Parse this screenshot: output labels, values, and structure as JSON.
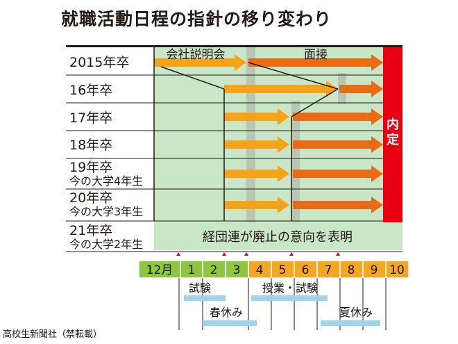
{
  "title": "就職活動日程の指針の移り変わり",
  "rows": [
    {
      "label": "2015年卒",
      "sub": ""
    },
    {
      "label": "16年卒",
      "sub": ""
    },
    {
      "label": "17年卒",
      "sub": ""
    },
    {
      "label": "18年卒",
      "sub": ""
    },
    {
      "label": "19年卒",
      "sub": "今の大学4年生"
    },
    {
      "label": "20年卒",
      "sub": "今の大学3年生"
    },
    {
      "label": "21年卒",
      "sub": "今の大学2年生"
    }
  ],
  "phase_labels": {
    "briefing": "会社説明会",
    "interview": "面接"
  },
  "offer_label": "内定",
  "abolition_text": "経団連が廃止の意向を表明",
  "months": [
    "12月",
    "1",
    "2",
    "3",
    "4",
    "5",
    "6",
    "7",
    "8",
    "9",
    "10"
  ],
  "calendar": {
    "exam_1": "試験",
    "classes_exam": "授業・試験",
    "spring_break": "春休み",
    "summer_break": "夏休み"
  },
  "credit": "高校生新聞社（禁転載）",
  "colors": {
    "grid_green": "#c9e6c6",
    "grid_gray": "#d9d9d9",
    "orange_light": "#f7a21b",
    "orange_dark": "#eb6b15",
    "red": "#e60012",
    "month_green": "#8dc63f",
    "month_orange": "#f5a623",
    "break_blue": "#9fd3ef"
  }
}
